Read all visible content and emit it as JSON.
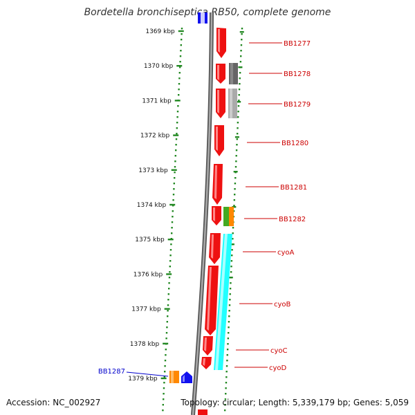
{
  "title": "Bordetella bronchiseptica RB50, complete genome",
  "footer": {
    "accession": "Accession: NC_002927",
    "summary": "Topology: circular; Length: 5,339,179 bp; Genes: 5,059"
  },
  "ruler": {
    "ticks": [
      "1369 kbp",
      "1370 kbp",
      "1371 kbp",
      "1372 kbp",
      "1373 kbp",
      "1374 kbp",
      "1375 kbp",
      "1376 kbp",
      "1377 kbp",
      "1378 kbp",
      "1379 kbp"
    ]
  },
  "genes": [
    {
      "name": "BB1277",
      "strand": "reverse",
      "color": "#ee1111"
    },
    {
      "name": "BB1278",
      "strand": "reverse",
      "color": "#ee1111"
    },
    {
      "name": "BB1279",
      "strand": "reverse",
      "color": "#ee1111"
    },
    {
      "name": "BB1280",
      "strand": "reverse",
      "color": "#ee1111"
    },
    {
      "name": "BB1281",
      "strand": "reverse",
      "color": "#ee1111"
    },
    {
      "name": "BB1282",
      "strand": "reverse",
      "color": "#ee1111"
    },
    {
      "name": "cyoA",
      "strand": "reverse",
      "color": "#ee1111"
    },
    {
      "name": "cyoB",
      "strand": "reverse",
      "color": "#ee1111"
    },
    {
      "name": "cyoC",
      "strand": "reverse",
      "color": "#ee1111"
    },
    {
      "name": "cyoD",
      "strand": "reverse",
      "color": "#ee1111"
    },
    {
      "name": "BB1287",
      "strand": "forward",
      "color": "#1111ee"
    }
  ],
  "colors": {
    "forward_gene": "#1111ee",
    "reverse_gene": "#ee1111",
    "reverse_label": "#cc0000",
    "forward_label": "#0000cc",
    "backbone": "#888888",
    "dotted_frame": "#228822",
    "cog_dark": "#666666",
    "cog_light": "#aaaaaa",
    "cog_green": "#44aa22",
    "cog_orange": "#ff8800",
    "cog_cyan": "#22ffff"
  }
}
